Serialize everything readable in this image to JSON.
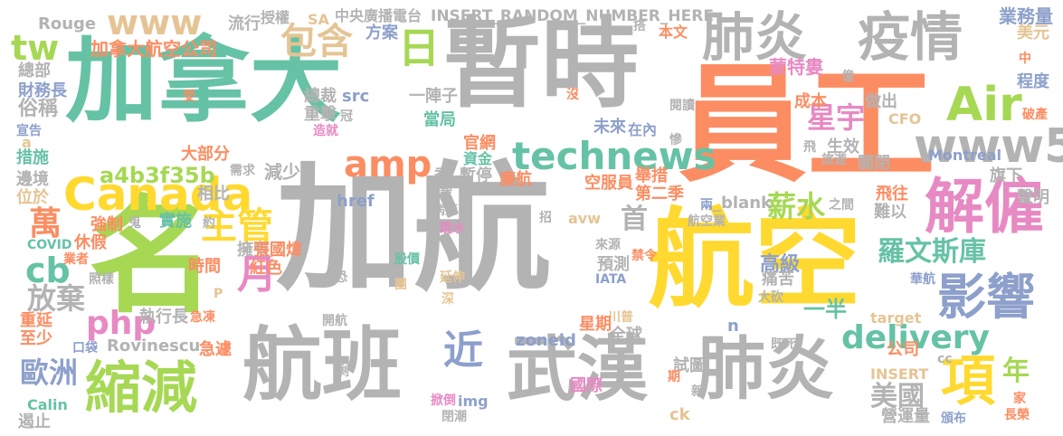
{
  "palette": {
    "green": "#66c2a5",
    "orange": "#fc8d62",
    "blue": "#8da0cb",
    "pink": "#e78ac3",
    "lime": "#a6d854",
    "yellow": "#ffd92f",
    "tan": "#e5c494",
    "gray": "#b3b3b3"
  },
  "words": [
    {
      "text": "加航",
      "color": "#b3b3b3",
      "weight": 100
    },
    {
      "text": "加拿大",
      "color": "#66c2a5",
      "weight": 95
    },
    {
      "text": "員工",
      "color": "#fc8d62",
      "weight": 92
    },
    {
      "text": "航空",
      "color": "#ffd92f",
      "weight": 90
    },
    {
      "text": "暫時",
      "color": "#b3b3b3",
      "weight": 88
    },
    {
      "text": "名",
      "color": "#a6d854",
      "weight": 86
    },
    {
      "text": "航班",
      "color": "#b3b3b3",
      "weight": 80
    },
    {
      "text": "武漢",
      "color": "#b3b3b3",
      "weight": 76
    },
    {
      "text": "肺炎",
      "color": "#b3b3b3",
      "weight": 75
    },
    {
      "text": "肺炎",
      "color": "#b3b3b3",
      "weight": 70
    },
    {
      "text": "疫情",
      "color": "#b3b3b3",
      "weight": 70
    },
    {
      "text": "解僱",
      "color": "#e78ac3",
      "weight": 68
    },
    {
      "text": "縮減",
      "color": "#a6d854",
      "weight": 60
    },
    {
      "text": "www5",
      "color": "#b3b3b3",
      "weight": 58
    },
    {
      "text": "Canada",
      "color": "#ffd92f",
      "weight": 56
    },
    {
      "text": "Air",
      "color": "#a6d854",
      "weight": 54
    },
    {
      "text": "影響",
      "color": "#8da0cb",
      "weight": 52
    },
    {
      "text": "technews",
      "color": "#66c2a5",
      "weight": 50
    },
    {
      "text": "項",
      "color": "#ffd92f",
      "weight": 50
    },
    {
      "text": "www",
      "color": "#e5c494",
      "weight": 48
    },
    {
      "text": "包含",
      "color": "#e5c494",
      "weight": 46
    },
    {
      "text": "日",
      "color": "#a6d854",
      "weight": 46
    },
    {
      "text": "tw",
      "color": "#a6d854",
      "weight": 44
    },
    {
      "text": "amp",
      "color": "#fc8d62",
      "weight": 44
    },
    {
      "text": "近",
      "color": "#8da0cb",
      "weight": 44
    },
    {
      "text": "delivery",
      "color": "#66c2a5",
      "weight": 42
    },
    {
      "text": "月",
      "color": "#e78ac3",
      "weight": 42
    },
    {
      "text": "主管",
      "color": "#ffd92f",
      "weight": 42
    },
    {
      "text": "羅文斯庫",
      "color": "#66c2a5",
      "weight": 40
    },
    {
      "text": "星宇",
      "color": "#e78ac3",
      "weight": 40
    },
    {
      "text": "cb",
      "color": "#66c2a5",
      "weight": 40
    },
    {
      "text": "薪水",
      "color": "#a6d854",
      "weight": 38
    },
    {
      "text": "php",
      "color": "#e78ac3",
      "weight": 38
    },
    {
      "text": "放棄",
      "color": "#b3b3b3",
      "weight": 36
    },
    {
      "text": "萬",
      "color": "#fc8d62",
      "weight": 36
    },
    {
      "text": "首",
      "color": "#b3b3b3",
      "weight": 34
    },
    {
      "text": "美國",
      "color": "#b3b3b3",
      "weight": 34
    },
    {
      "text": "歐洲",
      "color": "#8da0cb",
      "weight": 34
    },
    {
      "text": "年",
      "color": "#a6d854",
      "weight": 34
    },
    {
      "text": "a4b3f35b",
      "color": "#a6d854",
      "weight": 32
    },
    {
      "text": "加拿大航空公司",
      "color": "#fc8d62",
      "weight": 32
    },
    {
      "text": "INSERT_RANDOM_NUMBER_HERE",
      "color": "#b3b3b3",
      "weight": 30
    },
    {
      "text": "蒙特婁",
      "color": "#e78ac3",
      "weight": 30
    },
    {
      "text": "業務量",
      "color": "#8da0cb",
      "weight": 30
    },
    {
      "text": "一半",
      "color": "#66c2a5",
      "weight": 30
    },
    {
      "text": "高級",
      "color": "#8da0cb",
      "weight": 30
    },
    {
      "text": "Rovinescu",
      "color": "#b3b3b3",
      "weight": 30
    },
    {
      "text": "中央廣播電台",
      "color": "#b3b3b3",
      "weight": 28
    },
    {
      "text": "Rouge",
      "color": "#b3b3b3",
      "weight": 28
    },
    {
      "text": "流行",
      "color": "#b3b3b3",
      "weight": 28
    },
    {
      "text": "授權",
      "color": "#b3b3b3",
      "weight": 28
    },
    {
      "text": "SA",
      "color": "#e5c494",
      "weight": 28
    },
    {
      "text": "方案",
      "color": "#8da0cb",
      "weight": 28
    },
    {
      "text": "搭",
      "color": "#b3b3b3",
      "weight": 26
    },
    {
      "text": "本文",
      "color": "#fc8d62",
      "weight": 28
    },
    {
      "text": "美元",
      "color": "#e5c494",
      "weight": 28
    },
    {
      "text": "總部",
      "color": "#b3b3b3",
      "weight": 28
    },
    {
      "text": "財務長",
      "color": "#8da0cb",
      "weight": 28
    },
    {
      "text": "俗稱",
      "color": "#b3b3b3",
      "weight": 28
    },
    {
      "text": "宣告",
      "color": "#8da0cb",
      "weight": 26
    },
    {
      "text": "a",
      "color": "#e5c494",
      "weight": 26
    },
    {
      "text": "措施",
      "color": "#66c2a5",
      "weight": 28
    },
    {
      "text": "邊境",
      "color": "#b3b3b3",
      "weight": 28
    },
    {
      "text": "位於",
      "color": "#e5c494",
      "weight": 28
    },
    {
      "text": "Montreal",
      "color": "#8da0cb",
      "weight": 28
    },
    {
      "text": "總裁",
      "color": "#b3b3b3",
      "weight": 28
    },
    {
      "text": "重擊",
      "color": "#b3b3b3",
      "weight": 28
    },
    {
      "text": "造就",
      "color": "#e78ac3",
      "weight": 26
    },
    {
      "text": "src",
      "color": "#8da0cb",
      "weight": 28
    },
    {
      "text": "冠",
      "color": "#b3b3b3",
      "weight": 26
    },
    {
      "text": "大部分",
      "color": "#fc8d62",
      "weight": 28
    },
    {
      "text": "需求",
      "color": "#b3b3b3",
      "weight": 26
    },
    {
      "text": "減少",
      "color": "#b3b3b3",
      "weight": 28
    },
    {
      "text": "季",
      "color": "#b3b3b3",
      "weight": 28
    },
    {
      "text": "暫停",
      "color": "#b3b3b3",
      "weight": 28
    },
    {
      "text": "官網",
      "color": "#fc8d62",
      "weight": 28
    },
    {
      "text": "資金",
      "color": "#66c2a5",
      "weight": 28
    },
    {
      "text": "一陣子",
      "color": "#b3b3b3",
      "weight": 28
    },
    {
      "text": "當局",
      "color": "#66c2a5",
      "weight": 28
    },
    {
      "text": "未來",
      "color": "#8da0cb",
      "weight": 28
    },
    {
      "text": "在內",
      "color": "#8da0cb",
      "weight": 28
    },
    {
      "text": "閱讀",
      "color": "#b3b3b3",
      "weight": 26
    },
    {
      "text": "成本",
      "color": "#fc8d62",
      "weight": 28
    },
    {
      "text": "做出",
      "color": "#b3b3b3",
      "weight": 28
    },
    {
      "text": "程度",
      "color": "#8da0cb",
      "weight": 28
    },
    {
      "text": "破產",
      "color": "#fc8d62",
      "weight": 26
    },
    {
      "text": "CFO",
      "color": "#e5c494",
      "weight": 28
    },
    {
      "text": "生效",
      "color": "#b3b3b3",
      "weight": 28
    },
    {
      "text": "旅遊",
      "color": "#b3b3b3",
      "weight": 26
    },
    {
      "text": "關閉",
      "color": "#b3b3b3",
      "weight": 28
    },
    {
      "text": "旗下",
      "color": "#b3b3b3",
      "weight": 28
    },
    {
      "text": "聲明",
      "color": "#b3b3b3",
      "weight": 28
    },
    {
      "text": "億",
      "color": "#b3b3b3",
      "weight": 26
    },
    {
      "text": "中",
      "color": "#fc8d62",
      "weight": 26
    },
    {
      "text": "受",
      "color": "#fc8d62",
      "weight": 26
    },
    {
      "text": "沒",
      "color": "#fc8d62",
      "weight": 26
    },
    {
      "text": "慘",
      "color": "#b3b3b3",
      "weight": 26
    },
    {
      "text": "飛",
      "color": "#b3b3b3",
      "weight": 26
    },
    {
      "text": "轉載",
      "color": "#b3b3b3",
      "weight": 26
    },
    {
      "text": "廉航",
      "color": "#fc8d62",
      "weight": 28
    },
    {
      "text": "舉措",
      "color": "#fc8d62",
      "weight": 28
    },
    {
      "text": "空服員",
      "color": "#fc8d62",
      "weight": 28
    },
    {
      "text": "第二季",
      "color": "#fc8d62",
      "weight": 28
    },
    {
      "text": "href",
      "color": "#8da0cb",
      "weight": 28
    },
    {
      "text": "病死",
      "color": "#b3b3b3",
      "weight": 26
    },
    {
      "text": "_blank",
      "color": "#b3b3b3",
      "weight": 28
    },
    {
      "text": "兩",
      "color": "#8da0cb",
      "weight": 26
    },
    {
      "text": "之間",
      "color": "#b3b3b3",
      "weight": 26
    },
    {
      "text": "飛往",
      "color": "#fc8d62",
      "weight": 28
    },
    {
      "text": "難以",
      "color": "#b3b3b3",
      "weight": 28
    },
    {
      "text": "強制",
      "color": "#fc8d62",
      "weight": 28
    },
    {
      "text": "鬼",
      "color": "#b3b3b3",
      "weight": 26
    },
    {
      "text": "實施",
      "color": "#66c2a5",
      "weight": 28
    },
    {
      "text": "相比",
      "color": "#b3b3b3",
      "weight": 28
    },
    {
      "text": "約",
      "color": "#b3b3b3",
      "weight": 26
    },
    {
      "text": "招",
      "color": "#b3b3b3",
      "weight": 26
    },
    {
      "text": "avw",
      "color": "#e5c494",
      "weight": 28
    },
    {
      "text": "航空業",
      "color": "#b3b3b3",
      "weight": 26
    },
    {
      "text": "跳水",
      "color": "#e78ac3",
      "weight": 26
    },
    {
      "text": "休假",
      "color": "#fc8d62",
      "weight": 28
    },
    {
      "text": "COVID",
      "color": "#66c2a5",
      "weight": 26
    },
    {
      "text": "擁有",
      "color": "#b3b3b3",
      "weight": 28
    },
    {
      "text": "張國煒",
      "color": "#fc8d62",
      "weight": 28
    },
    {
      "text": "紅色",
      "color": "#fc8d62",
      "weight": 28
    },
    {
      "text": "來源",
      "color": "#b3b3b3",
      "weight": 26
    },
    {
      "text": "禁令",
      "color": "#fc8d62",
      "weight": 26
    },
    {
      "text": "預測",
      "color": "#b3b3b3",
      "weight": 28
    },
    {
      "text": "IATA",
      "color": "#8da0cb",
      "weight": 26
    },
    {
      "text": "業者",
      "color": "#fc8d62",
      "weight": 26
    },
    {
      "text": "時間",
      "color": "#fc8d62",
      "weight": 28
    },
    {
      "text": "恐",
      "color": "#b3b3b3",
      "weight": 26
    },
    {
      "text": "股價",
      "color": "#66c2a5",
      "weight": 26
    },
    {
      "text": "延伸",
      "color": "#e5c494",
      "weight": 26
    },
    {
      "text": "照樣",
      "color": "#b3b3b3",
      "weight": 26
    },
    {
      "text": "P",
      "color": "#e5c494",
      "weight": 26
    },
    {
      "text": "團",
      "color": "#e5c494",
      "weight": 26
    },
    {
      "text": "痛苦",
      "color": "#b3b3b3",
      "weight": 28
    },
    {
      "text": "華航",
      "color": "#8da0cb",
      "weight": 26
    },
    {
      "text": "大砍",
      "color": "#b3b3b3",
      "weight": 26
    },
    {
      "text": "執行長",
      "color": "#b3b3b3",
      "weight": 28
    },
    {
      "text": "急凍",
      "color": "#fc8d62",
      "weight": 26
    },
    {
      "text": "開航",
      "color": "#b3b3b3",
      "weight": 26
    },
    {
      "text": "深",
      "color": "#e5c494",
      "weight": 26
    },
    {
      "text": "川普",
      "color": "#e5c494",
      "weight": 26
    },
    {
      "text": "target",
      "color": "#e5c494",
      "weight": 28
    },
    {
      "text": "n",
      "color": "#8da0cb",
      "weight": 30
    },
    {
      "text": "星期",
      "color": "#fc8d62",
      "weight": 28
    },
    {
      "text": "全球",
      "color": "#b3b3b3",
      "weight": 28
    },
    {
      "text": "重延",
      "color": "#fc8d62",
      "weight": 28
    },
    {
      "text": "至少",
      "color": "#fc8d62",
      "weight": 28
    },
    {
      "text": "口袋",
      "color": "#8da0cb",
      "weight": 26
    },
    {
      "text": "急遽",
      "color": "#fc8d62",
      "weight": 28
    },
    {
      "text": "zoneid",
      "color": "#8da0cb",
      "weight": 28
    },
    {
      "text": "既死",
      "color": "#b3b3b3",
      "weight": 26
    },
    {
      "text": "公司",
      "color": "#fc8d62",
      "weight": 28
    },
    {
      "text": "cc",
      "color": "#b3b3b3",
      "weight": 26
    },
    {
      "text": "INSERT",
      "color": "#e5c494",
      "weight": 28
    },
    {
      "text": "試圖",
      "color": "#b3b3b3",
      "weight": 28
    },
    {
      "text": "期",
      "color": "#fc8d62",
      "weight": 26
    },
    {
      "text": "剩",
      "color": "#b3b3b3",
      "weight": 26
    },
    {
      "text": "Calin",
      "color": "#66c2a5",
      "weight": 28
    },
    {
      "text": "遏止",
      "color": "#b3b3b3",
      "weight": 28
    },
    {
      "text": "掀倒",
      "color": "#e78ac3",
      "weight": 26
    },
    {
      "text": "img",
      "color": "#8da0cb",
      "weight": 28
    },
    {
      "text": "閉潮",
      "color": "#b3b3b3",
      "weight": 26
    },
    {
      "text": "國際",
      "color": "#e78ac3",
      "weight": 28
    },
    {
      "text": "ck",
      "color": "#e5c494",
      "weight": 28
    },
    {
      "text": "新",
      "color": "#b3b3b3",
      "weight": 26
    },
    {
      "text": "營運量",
      "color": "#b3b3b3",
      "weight": 28
    },
    {
      "text": "頒布",
      "color": "#8da0cb",
      "weight": 26
    },
    {
      "text": "家",
      "color": "#fc8d62",
      "weight": 26
    },
    {
      "text": "長榮",
      "color": "#fc8d62",
      "weight": 26
    }
  ]
}
